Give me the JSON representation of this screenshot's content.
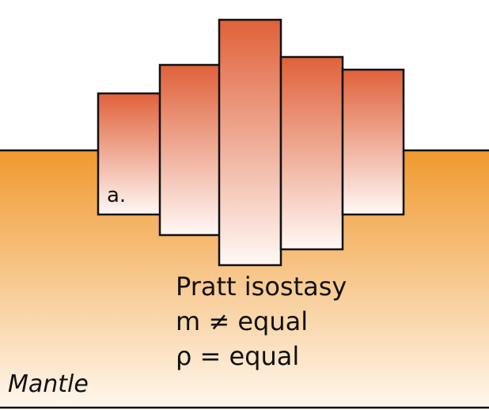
{
  "labels": {
    "panel": "a.",
    "title": "Pratt isostasy",
    "mass": "m ≠ equal",
    "density": "ρ = equal",
    "mantle": "Mantle"
  },
  "colors": {
    "mantle_top": "#f0992f",
    "mantle_bottom": "#fff8ef",
    "block_top": "#e0613a",
    "block_bottom": "#fff8f5",
    "outline": "#111111"
  }
}
